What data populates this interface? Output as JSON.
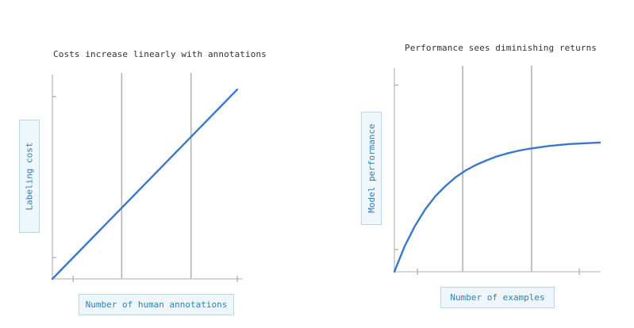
{
  "chart_data": [
    {
      "type": "line",
      "title": "Costs increase linearly with annotations",
      "xlabel": "Number of human annotations",
      "ylabel": "Labeling cost",
      "xlim": [
        0,
        4
      ],
      "ylim": [
        0,
        4.2
      ],
      "x": [
        0,
        4
      ],
      "series": [
        {
          "values": [
            0,
            4
          ]
        }
      ],
      "grid": "vertical",
      "line_color": "#3a79c9"
    },
    {
      "type": "line",
      "title": "Performance sees diminishing returns",
      "xlabel": "Number of examples",
      "ylabel": "Model performance",
      "xlim": [
        0,
        4
      ],
      "ylim": [
        0,
        4
      ],
      "x": [
        0,
        0.2,
        0.4,
        0.6,
        0.8,
        1.0,
        1.2,
        1.4,
        1.6,
        1.8,
        2.0,
        2.2,
        2.4,
        2.6,
        2.8,
        3.0,
        3.2,
        3.4,
        3.6,
        3.8,
        4.0
      ],
      "series": [
        {
          "values": [
            0,
            0.52,
            0.93,
            1.27,
            1.54,
            1.75,
            1.93,
            2.07,
            2.18,
            2.27,
            2.35,
            2.41,
            2.46,
            2.5,
            2.53,
            2.56,
            2.58,
            2.6,
            2.61,
            2.62,
            2.63
          ]
        }
      ],
      "grid": "vertical",
      "line_color": "#3a79c9"
    }
  ]
}
